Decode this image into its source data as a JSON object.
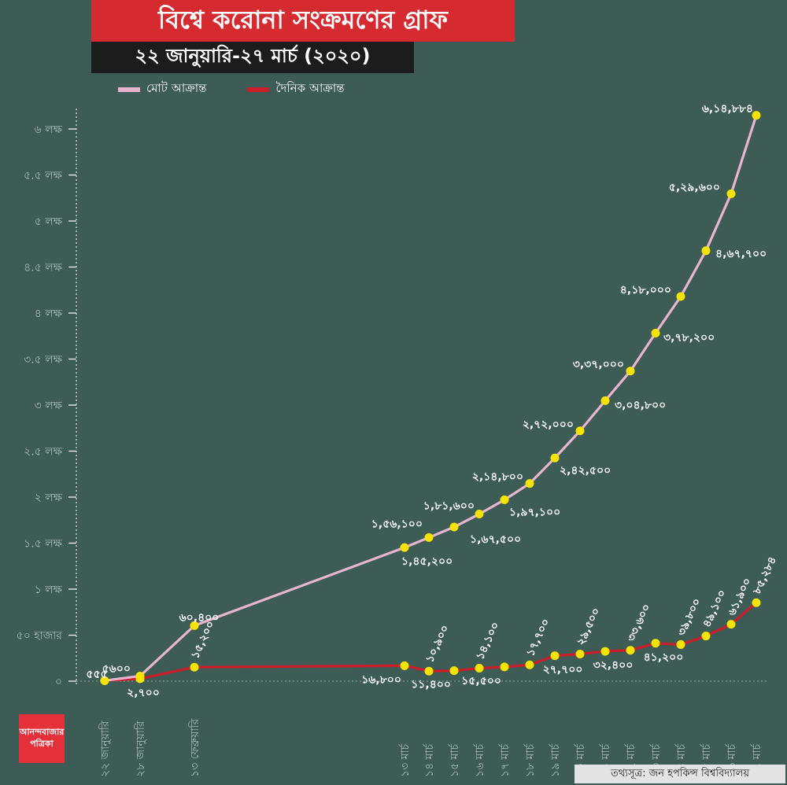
{
  "title": "বিশ্বে করোনা সংক্রমণের গ্রাফ",
  "subtitle": "২২ জানুয়ারি-২৭ মার্চ (২০২০)",
  "legend": {
    "total": "মোট আক্রান্ত",
    "daily": "দৈনিক আক্রান্ত"
  },
  "source": "তথ্যসূত্র: জন হপকিন্স বিশ্ববিদ্যালয়",
  "logo": {
    "line1": "আনন্দবাজার",
    "line2": "পত্রিকা"
  },
  "colors": {
    "background": "#3d5c55",
    "total": "#e8b4cf",
    "daily": "#cc1f2b",
    "point": "#f7e300",
    "title_bg": "#d42a30"
  },
  "chart_data": {
    "type": "line",
    "title": "বিশ্বে করোনা সংক্রমণের গ্রাফ",
    "subtitle": "২২ জানুয়ারি-২৭ মার্চ (২০২০)",
    "x": [
      "২২ জানুয়ারি",
      "২৮ জানুয়ারি",
      "১৩ ফেব্রুয়ারি",
      "১৩ মার্চ",
      "১৪ মার্চ",
      "১৫ মার্চ",
      "১৬ মার্চ",
      "১৭ মার্চ",
      "১৮ মার্চ",
      "১৯ মার্চ",
      "২০ মার্চ",
      "২১ মার্চ",
      "২২ মার্চ",
      "২৩ মার্চ",
      "২৪ মার্চ",
      "২৫ মার্চ",
      "২৬ মার্চ",
      "২৭ মার্চ"
    ],
    "y_ticks": [
      0,
      50000,
      100000,
      150000,
      200000,
      250000,
      300000,
      350000,
      400000,
      450000,
      500000,
      550000,
      600000
    ],
    "y_tick_labels": [
      "০",
      "৫০ হাজার",
      "১ লক্ষ",
      "১.৫ লক্ষ",
      "২ লক্ষ",
      "২.৫ লক্ষ",
      "৩ লক্ষ",
      "৩.৫ লক্ষ",
      "৪ লক্ষ",
      "৪.৫ লক্ষ",
      "৫ লক্ষ",
      "৫.৫ লক্ষ",
      "৬ লক্ষ"
    ],
    "ylim": [
      0,
      600000
    ],
    "legend_position": "top",
    "series": [
      {
        "name": "মোট আক্রান্ত",
        "values": [
          555,
          5600,
          60400,
          145200,
          156100,
          167500,
          181600,
          197100,
          214800,
          242500,
          272000,
          304800,
          337000,
          378200,
          418000,
          467700,
          529600,
          614884
        ],
        "labels": [
          "৫৫৫",
          "৫৬০০",
          "৬০,৪০০",
          "১,৪৫,২০০",
          "১,৫৬,১০০",
          "১,৬৭,৫০০",
          "১,৮১,৬০০",
          "১,৯৭,১০০",
          "২,১৪,৮০০",
          "২,৪২,৫০০",
          "২,৭২,০০০",
          "৩,০৪,৮০০",
          "৩,৩৭,০০০",
          "৩,৭৮,২০০",
          "৪,১৮,০০০",
          "৪,৬৭,৭০০",
          "৫,২৯,৬০০",
          "৬,১৪,৮৮৪"
        ]
      },
      {
        "name": "দৈনিক আক্রান্ত",
        "values": [
          555,
          2700,
          15200,
          16800,
          10900,
          11400,
          14100,
          15500,
          17700,
          27700,
          29500,
          32400,
          33600,
          41200,
          39800,
          49100,
          61900,
          85284
        ],
        "labels": [
          "",
          "২,৭০০",
          "১৫,২০০",
          "১৬,৮০০",
          "১০,৯০০",
          "১১,৪০০",
          "১৪,১০০",
          "১৫,৫০০",
          "১৭,৭০০",
          "২৭,৭০০",
          "২৯,৫০০",
          "৩২,৪০০",
          "৩৩,৬০০",
          "৪১,২০০",
          "৩৯,৮০০",
          "৪৯,১০০",
          "৬১,৯০০",
          "৮৫,২৮৪"
        ]
      }
    ]
  }
}
